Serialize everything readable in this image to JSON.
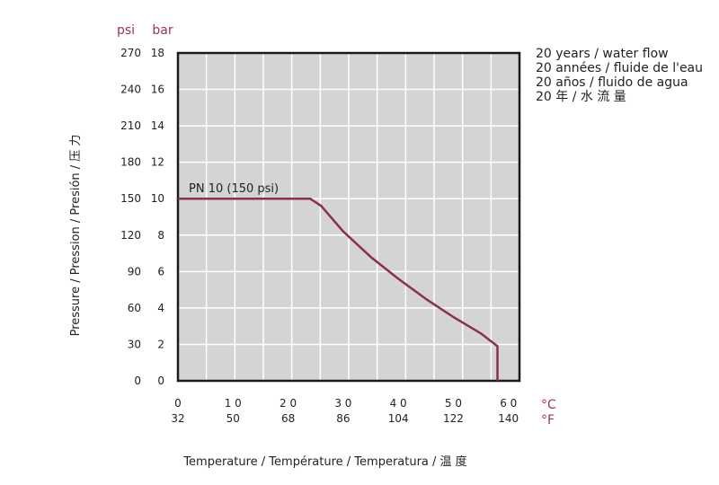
{
  "chart_data": {
    "type": "line",
    "title": "",
    "x_unit_primary": "°C",
    "x_unit_secondary": "°F",
    "y_unit_primary": "bar",
    "y_unit_secondary": "psi",
    "xlabel": "Temperature / Température / Temperatura / 温 度",
    "ylabel": "Pressure / Pression / Presión / 压 力",
    "xlim": [
      0,
      62
    ],
    "ylim": [
      0,
      18
    ],
    "x_ticks_c": [
      "0",
      "1 0",
      "2 0",
      "3 0",
      "4 0",
      "5 0",
      "6 0"
    ],
    "x_ticks_f": [
      "32",
      "50",
      "68",
      "86",
      "104",
      "122",
      "140"
    ],
    "y_ticks_bar": [
      "0",
      "2",
      "4",
      "6",
      "8",
      "10",
      "12",
      "14",
      "16",
      "18"
    ],
    "y_ticks_psi": [
      "0",
      "30",
      "60",
      "90",
      "120",
      "150",
      "180",
      "210",
      "240",
      "270"
    ],
    "grid": true,
    "legend_position": "top-right",
    "legend_lines": [
      "20 years / water flow",
      "20 années / fluide de l'eau",
      "20 años / fluido de agua",
      "20 年 / 水 流 量"
    ],
    "series": [
      {
        "name": "PN 10 (150 psi)",
        "color": "#8b2f4a",
        "x": [
          0,
          24,
          26,
          30,
          35,
          40,
          45,
          50,
          55,
          58,
          58
        ],
        "y": [
          10,
          10,
          9.6,
          8.2,
          6.8,
          5.6,
          4.5,
          3.5,
          2.6,
          1.9,
          0
        ]
      }
    ]
  }
}
